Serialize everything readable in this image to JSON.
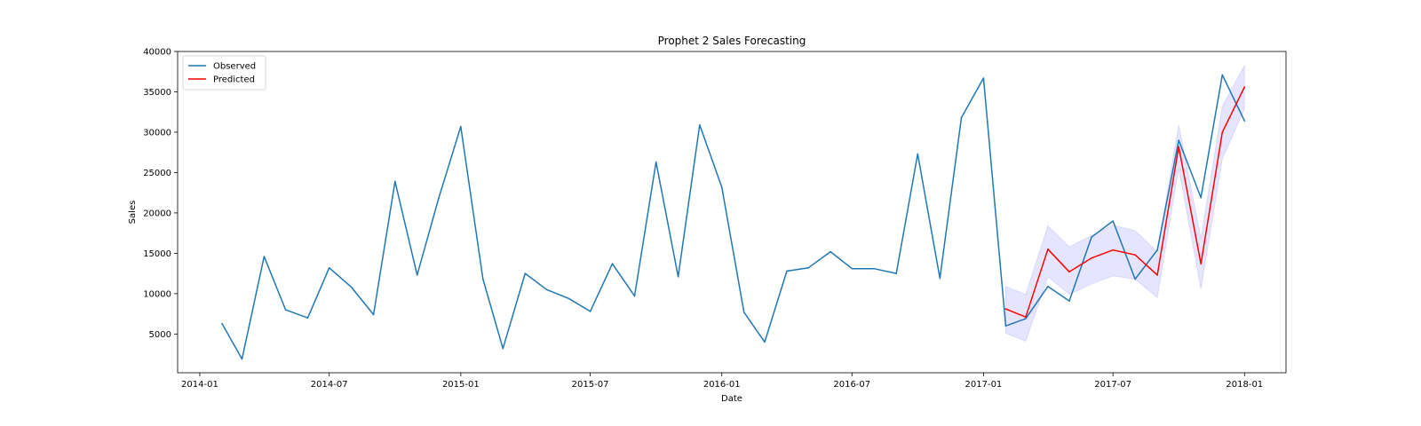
{
  "chart_data": {
    "type": "line",
    "title": "Prophet 2 Sales Forecasting",
    "xlabel": "Date",
    "ylabel": "Sales",
    "xlim": [
      "2013-12-01",
      "2018-02-28"
    ],
    "ylim": [
      200,
      40000
    ],
    "x_ticks": [
      "2014-01",
      "2014-07",
      "2015-01",
      "2015-07",
      "2016-01",
      "2016-07",
      "2017-01",
      "2017-07",
      "2018-01"
    ],
    "y_ticks": [
      5000,
      10000,
      15000,
      20000,
      25000,
      30000,
      35000,
      40000
    ],
    "grid": false,
    "legend_position": "top-left",
    "series": [
      {
        "name": "Observed",
        "color": "#1f77b4",
        "x": [
          "2014-02-01",
          "2014-03-01",
          "2014-04-01",
          "2014-05-01",
          "2014-06-01",
          "2014-07-01",
          "2014-08-01",
          "2014-09-01",
          "2014-10-01",
          "2014-11-01",
          "2014-12-01",
          "2015-01-01",
          "2015-02-01",
          "2015-03-01",
          "2015-04-01",
          "2015-05-01",
          "2015-06-01",
          "2015-07-01",
          "2015-08-01",
          "2015-09-01",
          "2015-10-01",
          "2015-11-01",
          "2015-12-01",
          "2016-01-01",
          "2016-02-01",
          "2016-03-01",
          "2016-04-01",
          "2016-05-01",
          "2016-06-01",
          "2016-07-01",
          "2016-08-01",
          "2016-09-01",
          "2016-10-01",
          "2016-11-01",
          "2016-12-01",
          "2017-01-01",
          "2017-02-01",
          "2017-03-01",
          "2017-04-01",
          "2017-05-01",
          "2017-06-01",
          "2017-07-01",
          "2017-08-01",
          "2017-09-01",
          "2017-10-01",
          "2017-11-01",
          "2017-12-01",
          "2018-01-01"
        ],
        "y": [
          6300,
          1900,
          14600,
          8000,
          7000,
          13200,
          10800,
          7400,
          23900,
          12300,
          21800,
          30700,
          11800,
          3200,
          12500,
          10500,
          9400,
          7800,
          13700,
          9700,
          26300,
          12100,
          30900,
          23200,
          7700,
          4000,
          12800,
          13200,
          15200,
          13100,
          13100,
          12500,
          27300,
          11900,
          31800,
          36700,
          6000,
          6900,
          10900,
          9100,
          17000,
          19000,
          11800,
          15400,
          29000,
          21900,
          37100,
          31400
        ]
      },
      {
        "name": "Predicted",
        "color": "#ff0000",
        "x": [
          "2017-02-01",
          "2017-03-01",
          "2017-04-01",
          "2017-05-01",
          "2017-06-01",
          "2017-07-01",
          "2017-08-01",
          "2017-09-01",
          "2017-10-01",
          "2017-11-01",
          "2017-12-01",
          "2018-01-01"
        ],
        "y": [
          8100,
          7100,
          15500,
          12700,
          14400,
          15400,
          14800,
          12300,
          28200,
          13700,
          30000,
          35600
        ],
        "lower": [
          5100,
          4100,
          12100,
          9900,
          11200,
          12200,
          11800,
          9500,
          25600,
          10600,
          26700,
          32900
        ],
        "upper": [
          10900,
          9900,
          18400,
          15800,
          17200,
          18500,
          17800,
          15200,
          30900,
          16800,
          33200,
          38300
        ],
        "band_color": "#0000ff"
      }
    ]
  }
}
